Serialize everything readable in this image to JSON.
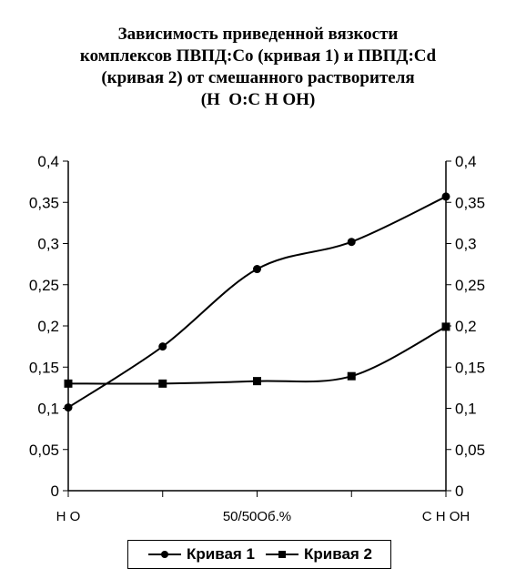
{
  "title_lines": [
    "Зависимость приведенной вязкости",
    "комплексов ПВПД:Co (кривая 1) и ПВПД:Cd",
    "(кривая 2) от смешанного растворителя",
    "(H  O:C H OH)"
  ],
  "chart_data": {
    "type": "line",
    "x": [
      0,
      25,
      50,
      75,
      100
    ],
    "x_tick_labels": [
      "H O",
      "",
      "50/50Об.%",
      "",
      "C H OH"
    ],
    "ylim": [
      0,
      0.4
    ],
    "y_tick_labels": [
      "0",
      "0,05",
      "0,1",
      "0,15",
      "0,2",
      "0,25",
      "0,3",
      "0,35",
      "0,4"
    ],
    "secondary_y_axis": true,
    "grid": false,
    "legend_position": "bottom",
    "smooth": true,
    "series": [
      {
        "name": "Кривая 1",
        "marker": "circle",
        "color": "#000000",
        "values": [
          0.101,
          0.175,
          0.269,
          0.302,
          0.357
        ]
      },
      {
        "name": "Кривая 2",
        "marker": "square",
        "color": "#000000",
        "values": [
          0.13,
          0.13,
          0.133,
          0.139,
          0.199
        ]
      }
    ]
  }
}
